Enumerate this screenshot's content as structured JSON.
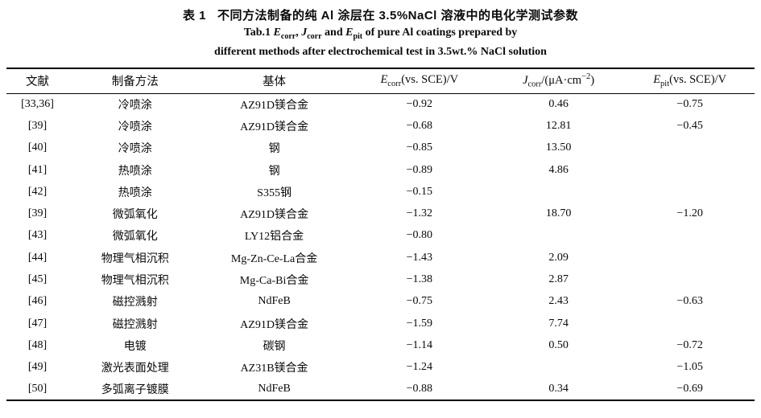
{
  "title": {
    "zh_label": "表 1",
    "zh_text": "不同方法制备的纯 Al 涂层在 3.5%NaCl 溶液中的电化学测试参数",
    "en": {
      "prefix": "Tab.1 ",
      "sym1": "E",
      "sub1": "corr",
      "sep1": ", ",
      "sym2": "J",
      "sub2": "corr",
      "sep2": " and ",
      "sym3": "E",
      "sub3": "pit",
      "rest": " of pure Al coatings prepared by",
      "line2": "different methods after electrochemical test in 3.5wt.% NaCl solution"
    }
  },
  "table": {
    "headers": {
      "ref": "文献",
      "method": "制备方法",
      "substrate": "基体",
      "ecorr": {
        "sym": "E",
        "sub": "corr",
        "rest": "(vs. SCE)/V"
      },
      "jcorr": {
        "sym": "J",
        "sub": "corr",
        "pre": "/(μA·cm",
        "sup": "−2",
        "post": ")"
      },
      "epit": {
        "sym": "E",
        "sub": "pit",
        "rest": "(vs. SCE)/V"
      }
    },
    "rows": [
      {
        "ref": "[33,36]",
        "method": "冷喷涂",
        "substrate": "AZ91D镁合金",
        "ecorr": "−0.92",
        "jcorr": "0.46",
        "epit": "−0.75"
      },
      {
        "ref": "[39]",
        "method": "冷喷涂",
        "substrate": "AZ91D镁合金",
        "ecorr": "−0.68",
        "jcorr": "12.81",
        "epit": "−0.45"
      },
      {
        "ref": "[40]",
        "method": "冷喷涂",
        "substrate": "钢",
        "ecorr": "−0.85",
        "jcorr": "13.50",
        "epit": ""
      },
      {
        "ref": "[41]",
        "method": "热喷涂",
        "substrate": "钢",
        "ecorr": "−0.89",
        "jcorr": "4.86",
        "epit": ""
      },
      {
        "ref": "[42]",
        "method": "热喷涂",
        "substrate": "S355钢",
        "ecorr": "−0.15",
        "jcorr": "",
        "epit": ""
      },
      {
        "ref": "[39]",
        "method": "微弧氧化",
        "substrate": "AZ91D镁合金",
        "ecorr": "−1.32",
        "jcorr": "18.70",
        "epit": "−1.20"
      },
      {
        "ref": "[43]",
        "method": "微弧氧化",
        "substrate": "LY12铝合金",
        "ecorr": "−0.80",
        "jcorr": "",
        "epit": ""
      },
      {
        "ref": "[44]",
        "method": "物理气相沉积",
        "substrate": "Mg-Zn-Ce-La合金",
        "ecorr": "−1.43",
        "jcorr": "2.09",
        "epit": ""
      },
      {
        "ref": "[45]",
        "method": "物理气相沉积",
        "substrate": "Mg-Ca-Bi合金",
        "ecorr": "−1.38",
        "jcorr": "2.87",
        "epit": ""
      },
      {
        "ref": "[46]",
        "method": "磁控溅射",
        "substrate": "NdFeB",
        "ecorr": "−0.75",
        "jcorr": "2.43",
        "epit": "−0.63"
      },
      {
        "ref": "[47]",
        "method": "磁控溅射",
        "substrate": "AZ91D镁合金",
        "ecorr": "−1.59",
        "jcorr": "7.74",
        "epit": ""
      },
      {
        "ref": "[48]",
        "method": "电镀",
        "substrate": "碳钢",
        "ecorr": "−1.14",
        "jcorr": "0.50",
        "epit": "−0.72"
      },
      {
        "ref": "[49]",
        "method": "激光表面处理",
        "substrate": "AZ31B镁合金",
        "ecorr": "−1.24",
        "jcorr": "",
        "epit": "−1.05"
      },
      {
        "ref": "[50]",
        "method": "多弧离子镀膜",
        "substrate": "NdFeB",
        "ecorr": "−0.88",
        "jcorr": "0.34",
        "epit": "−0.69"
      }
    ]
  }
}
